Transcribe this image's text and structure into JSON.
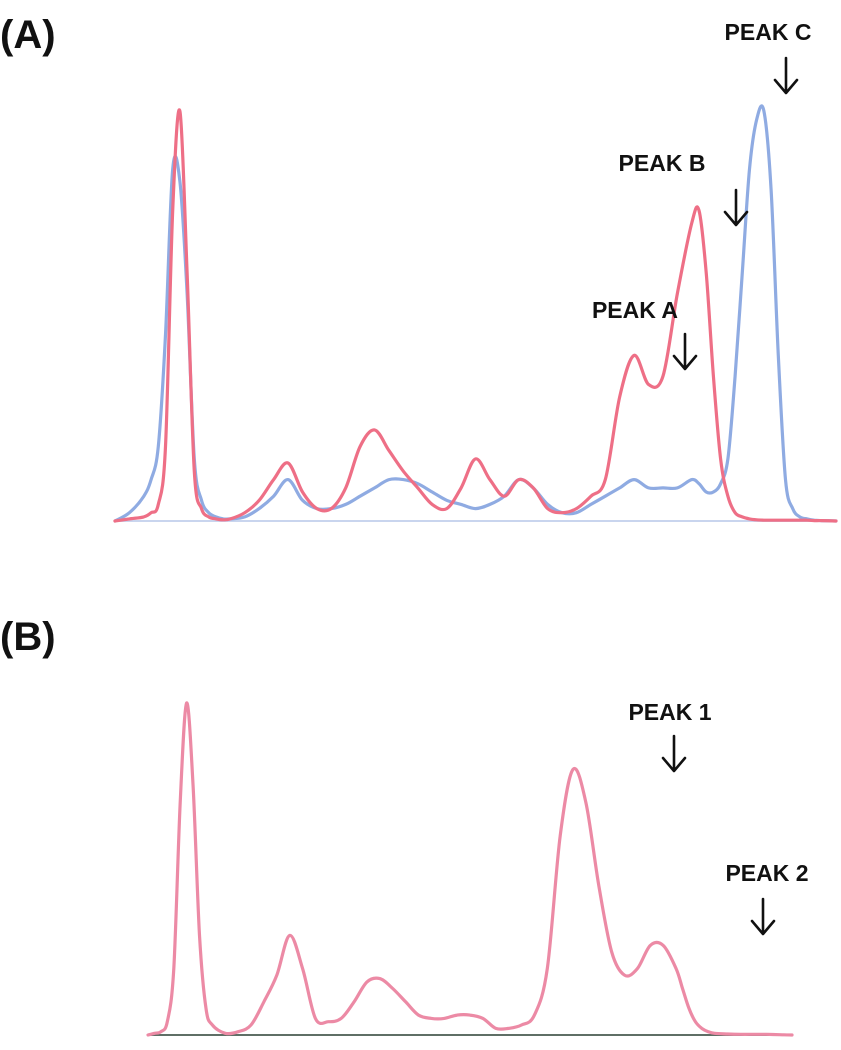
{
  "colors": {
    "red_trace": "#ee6f86",
    "blue_trace": "#8fabe2",
    "pink_trace": "#ec8aa5",
    "baseline_a": "#c9d5ee",
    "baseline_b": "#5f6f66",
    "text": "#111111"
  },
  "chart_data": [
    {
      "type": "line",
      "panel_label": "(A)",
      "xlim": [
        0,
        100
      ],
      "ylim": [
        0,
        100
      ],
      "x": [
        0,
        2,
        4,
        5,
        6,
        7,
        8,
        9,
        10,
        11,
        12,
        13,
        14,
        15,
        16,
        18,
        20,
        22,
        24,
        26,
        28,
        30,
        32,
        34,
        36,
        38,
        40,
        42,
        44,
        46,
        48,
        50,
        52,
        54,
        56,
        58,
        60,
        62,
        64,
        66,
        68,
        70,
        72,
        74,
        76,
        78,
        80,
        81,
        82,
        83,
        84,
        85,
        86,
        87,
        88,
        89,
        90,
        91,
        92,
        93,
        94,
        95,
        96,
        97,
        98,
        100
      ],
      "series": [
        {
          "color": "red",
          "values": [
            0,
            0.5,
            1,
            2,
            4,
            18,
            75,
            99,
            60,
            12,
            3,
            1,
            0.5,
            0.3,
            0.5,
            2,
            5,
            10,
            14,
            7,
            3,
            3,
            8,
            18,
            22,
            17,
            12,
            8,
            4,
            3,
            8,
            15,
            10,
            6,
            10,
            8,
            3,
            2,
            3,
            6,
            10,
            30,
            40,
            33,
            35,
            55,
            72,
            75,
            60,
            35,
            15,
            6,
            2,
            1,
            0.5,
            0.3,
            0.2,
            0.2,
            0.2,
            0.2,
            0.2,
            0.2,
            0.2,
            0.1,
            0.1,
            0
          ],
          "peaks": [
            {
              "label": "PEAK A",
              "x": 78.5,
              "y": 40
            },
            {
              "label": "PEAK B",
              "x": 87,
              "y": 75
            }
          ]
        },
        {
          "color": "blue",
          "values": [
            0,
            2,
            6,
            10,
            18,
            45,
            85,
            82,
            55,
            15,
            5,
            2,
            1,
            0.5,
            0.5,
            1,
            3,
            6,
            10,
            5,
            3,
            3,
            4,
            6,
            8,
            10,
            10,
            9,
            7,
            5,
            4,
            3,
            4,
            6,
            10,
            8,
            4,
            2,
            2,
            4,
            6,
            8,
            10,
            8,
            8,
            8,
            10,
            9,
            7,
            7,
            9,
            15,
            35,
            60,
            85,
            97,
            99,
            80,
            40,
            10,
            3,
            1,
            0.5,
            0.2,
            0.1,
            0
          ],
          "peaks": [
            {
              "label": "PEAK C",
              "x": 94.5,
              "y": 99
            }
          ]
        }
      ]
    },
    {
      "type": "line",
      "panel_label": "(B)",
      "xlim": [
        0,
        100
      ],
      "ylim": [
        0,
        100
      ],
      "x": [
        0,
        1,
        2,
        3,
        4,
        5,
        6,
        7,
        8,
        9,
        10,
        12,
        14,
        16,
        18,
        20,
        22,
        24,
        26,
        28,
        30,
        32,
        34,
        36,
        38,
        40,
        42,
        44,
        46,
        48,
        50,
        52,
        54,
        56,
        58,
        60,
        62,
        64,
        66,
        68,
        70,
        72,
        74,
        76,
        78,
        80,
        82,
        83,
        84,
        85,
        86,
        87,
        88,
        90,
        92,
        94,
        96,
        98,
        100
      ],
      "series": [
        {
          "color": "pink",
          "values": [
            0,
            0.5,
            1,
            4,
            20,
            70,
            100,
            75,
            30,
            8,
            3,
            0.5,
            1,
            3,
            10,
            18,
            30,
            20,
            5,
            4,
            5,
            10,
            16,
            17,
            14,
            10,
            6,
            5,
            5,
            6,
            6,
            5,
            2,
            2,
            3,
            6,
            20,
            60,
            80,
            70,
            45,
            25,
            18,
            20,
            27,
            27,
            20,
            14,
            8,
            4,
            2,
            1,
            0.5,
            0.3,
            0.2,
            0.2,
            0.2,
            0.1,
            0
          ],
          "peaks": [
            {
              "label": "PEAK 1",
              "x": 81,
              "y": 80
            },
            {
              "label": "PEAK 2",
              "x": 95.5,
              "y": 27
            }
          ]
        }
      ]
    }
  ]
}
